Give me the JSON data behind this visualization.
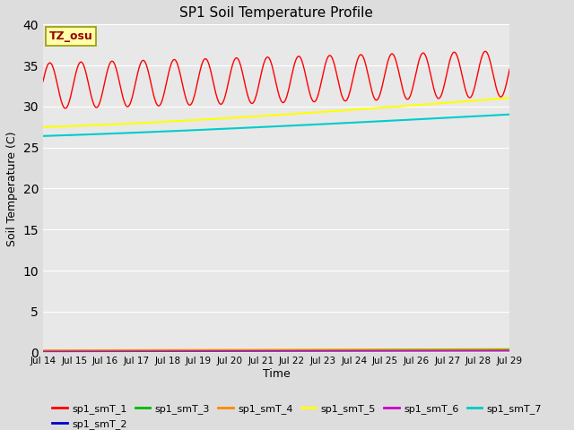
{
  "title": "SP1 Soil Temperature Profile",
  "xlabel": "Time",
  "ylabel": "Soil Temperature (C)",
  "ylim": [
    0,
    40
  ],
  "yticks": [
    0,
    5,
    10,
    15,
    20,
    25,
    30,
    35,
    40
  ],
  "x_tick_labels": [
    "Jul 14",
    "Jul 15",
    "Jul 16",
    "Jul 17",
    "Jul 18",
    "Jul 19",
    "Jul 20",
    "Jul 21",
    "Jul 22",
    "Jul 23",
    "Jul 24",
    "Jul 25",
    "Jul 26",
    "Jul 27",
    "Jul 28",
    "Jul 29"
  ],
  "annotation_text": "TZ_osu",
  "annotation_color": "#990000",
  "annotation_bg": "#ffffaa",
  "annotation_border": "#999900",
  "series_colors": {
    "sp1_smT_1": "#ff0000",
    "sp1_smT_2": "#0000cc",
    "sp1_smT_3": "#00bb00",
    "sp1_smT_4": "#ff8800",
    "sp1_smT_5": "#ffff00",
    "sp1_smT_6": "#cc00cc",
    "sp1_smT_7": "#00cccc"
  },
  "bg_color": "#e8e8e8",
  "grid_color": "#ffffff",
  "n_points": 720,
  "days": 15
}
